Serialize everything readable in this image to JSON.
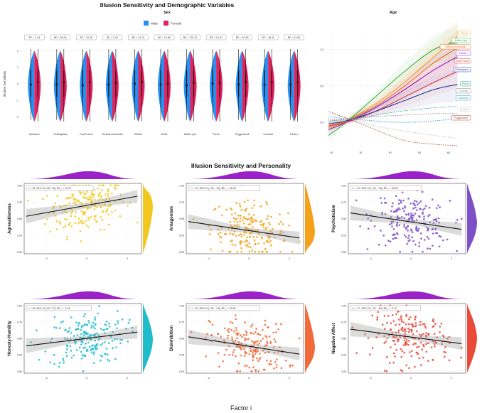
{
  "chart_data": [
    {
      "type": "violin",
      "title": "Illusion Sensitivity and Demographic Variables",
      "legend_title": "Sex",
      "legend": [
        {
          "name": "Male",
          "color": "#2b8ff0"
        },
        {
          "name": "Female",
          "color": "#e0245e"
        }
      ],
      "ylabel": "Illusion Sensitivity",
      "yticks": [
        2,
        1,
        0,
        -1,
        -2
      ],
      "ylim": [
        -2.6,
        2.4
      ],
      "categories": [
        "Delboeuf",
        "Ebbinghaus",
        "Rod-Frame",
        "Vertical-Horizontal",
        "Zöllner",
        "White",
        "Müller-Lyer",
        "Ponzo",
        "Poggendorff",
        "Contrast",
        "Factor i"
      ],
      "bf_labels": [
        "BF = 2.44",
        "BF = 58.34",
        "BF = 10.16",
        "BF = 1.33",
        "BF = 12.74",
        "BF = 10.80",
        "BF = 102.10",
        "BF = 14.47",
        "BF = 10.89",
        "BF = 18.11",
        "BF = 11.80"
      ],
      "male_means": [
        -0.05,
        -0.05,
        -0.1,
        -0.05,
        0.0,
        -0.05,
        -0.1,
        0.0,
        -0.05,
        -0.05,
        -0.05
      ],
      "female_means": [
        0.1,
        0.1,
        0.1,
        0.05,
        0.1,
        0.0,
        0.05,
        0.05,
        0.1,
        0.1,
        0.1
      ]
    },
    {
      "type": "line",
      "title": "Age",
      "xticks": [
        20,
        30,
        40,
        50,
        60
      ],
      "yticks": [
        0.0,
        0.5,
        1.0
      ],
      "xlim": [
        18,
        68
      ],
      "ylim": [
        -0.35,
        1.25
      ],
      "x": [
        19,
        25,
        35,
        45,
        55,
        63
      ],
      "series": [
        {
          "name": "Zöllner",
          "color": "#f0a01e",
          "style": "solid",
          "values": [
            -0.08,
            0.02,
            0.25,
            0.55,
            0.9,
            1.18
          ]
        },
        {
          "name": "Müller-Lyer",
          "color": "#3ab03a",
          "style": "solid",
          "values": [
            -0.18,
            0.0,
            0.35,
            0.7,
            1.0,
            1.1
          ]
        },
        {
          "name": "Vertical-Horizontal",
          "color": "#f06a1e",
          "style": "solid",
          "values": [
            -0.05,
            0.02,
            0.22,
            0.5,
            0.82,
            1.02
          ]
        },
        {
          "name": "Factor i",
          "color": "#8a1fd0",
          "style": "solid",
          "values": [
            -0.1,
            0.0,
            0.2,
            0.45,
            0.72,
            0.9
          ]
        },
        {
          "name": "Rod-Frame",
          "color": "#e03a3a",
          "style": "solid",
          "values": [
            -0.05,
            0.0,
            0.15,
            0.35,
            0.55,
            0.7
          ]
        },
        {
          "name": "Ebbinghaus",
          "color": "#2a3aa0",
          "style": "solid",
          "values": [
            -0.02,
            0.02,
            0.15,
            0.3,
            0.45,
            0.52
          ]
        },
        {
          "name": "Ponzo",
          "color": "#1a9a8a",
          "style": "dotted",
          "values": [
            0.02,
            0.04,
            0.1,
            0.16,
            0.2,
            0.22
          ]
        },
        {
          "name": "Contrast",
          "color": "#888888",
          "style": "dotted",
          "values": [
            0.05,
            0.04,
            0.08,
            0.1,
            0.12,
            0.12
          ]
        },
        {
          "name": "Delboeuf",
          "color": "#2a9ac8",
          "style": "dotted",
          "values": [
            0.08,
            0.05,
            0.02,
            0.0,
            0.02,
            0.05
          ]
        },
        {
          "name": "White",
          "color": "#bbbbbb",
          "style": "dotted",
          "values": [
            0.12,
            0.06,
            -0.05,
            -0.12,
            -0.18,
            -0.22
          ]
        },
        {
          "name": "Poggendorff",
          "color": "#a0422a",
          "style": "dotted",
          "values": [
            0.15,
            0.06,
            -0.1,
            -0.25,
            -0.3,
            -0.32
          ]
        }
      ]
    },
    {
      "type": "scatter",
      "title": "Illusion Sensitivity and Personality",
      "xlabel": "Factor i",
      "xticks": [
        -2,
        0,
        2
      ],
      "xlim": [
        -3.1,
        2.7
      ],
      "yticks": [
        1.0,
        0.75,
        0.5,
        0.25,
        0.0
      ],
      "ylim": [
        -0.03,
        1.03
      ],
      "panels": [
        {
          "ylabel": "Agreeableness",
          "color": "#f2c81e",
          "stat": "r = .19, 95% CI [.08, .32], BF₁₀ = 16.07",
          "intercept": 0.7,
          "slope": 0.055
        },
        {
          "ylabel": "Antagonism",
          "color": "#f5a21a",
          "stat": "r = -.22, 95% CI [-.33, -.09], BF₁₀ = 46.20",
          "intercept": 0.32,
          "slope": -0.045
        },
        {
          "ylabel": "Psychoticism",
          "color": "#7e50c8",
          "stat": "r = -.20, 95% CI [-.33, -.09], BF₁₀ = 28.94",
          "intercept": 0.45,
          "slope": -0.045
        },
        {
          "ylabel": "Honesty-Humility",
          "color": "#1fbccc",
          "stat": "r = .16, 95% CI [.03, .27], BF₁₀ = 3.18",
          "intercept": 0.5,
          "slope": 0.038
        },
        {
          "ylabel": "Disinhibition",
          "color": "#f26a3a",
          "stat": "r = -.20, 95% CI [-.32, -.09], BF₁₀ = 25.91",
          "intercept": 0.38,
          "slope": -0.048
        },
        {
          "ylabel": "Negative Affect",
          "color": "#ea4a3a",
          "stat": "r = -.17, 95% CI [-.30, -.06], BF₁₀ = 5.12",
          "intercept": 0.52,
          "slope": -0.04
        }
      ]
    }
  ]
}
